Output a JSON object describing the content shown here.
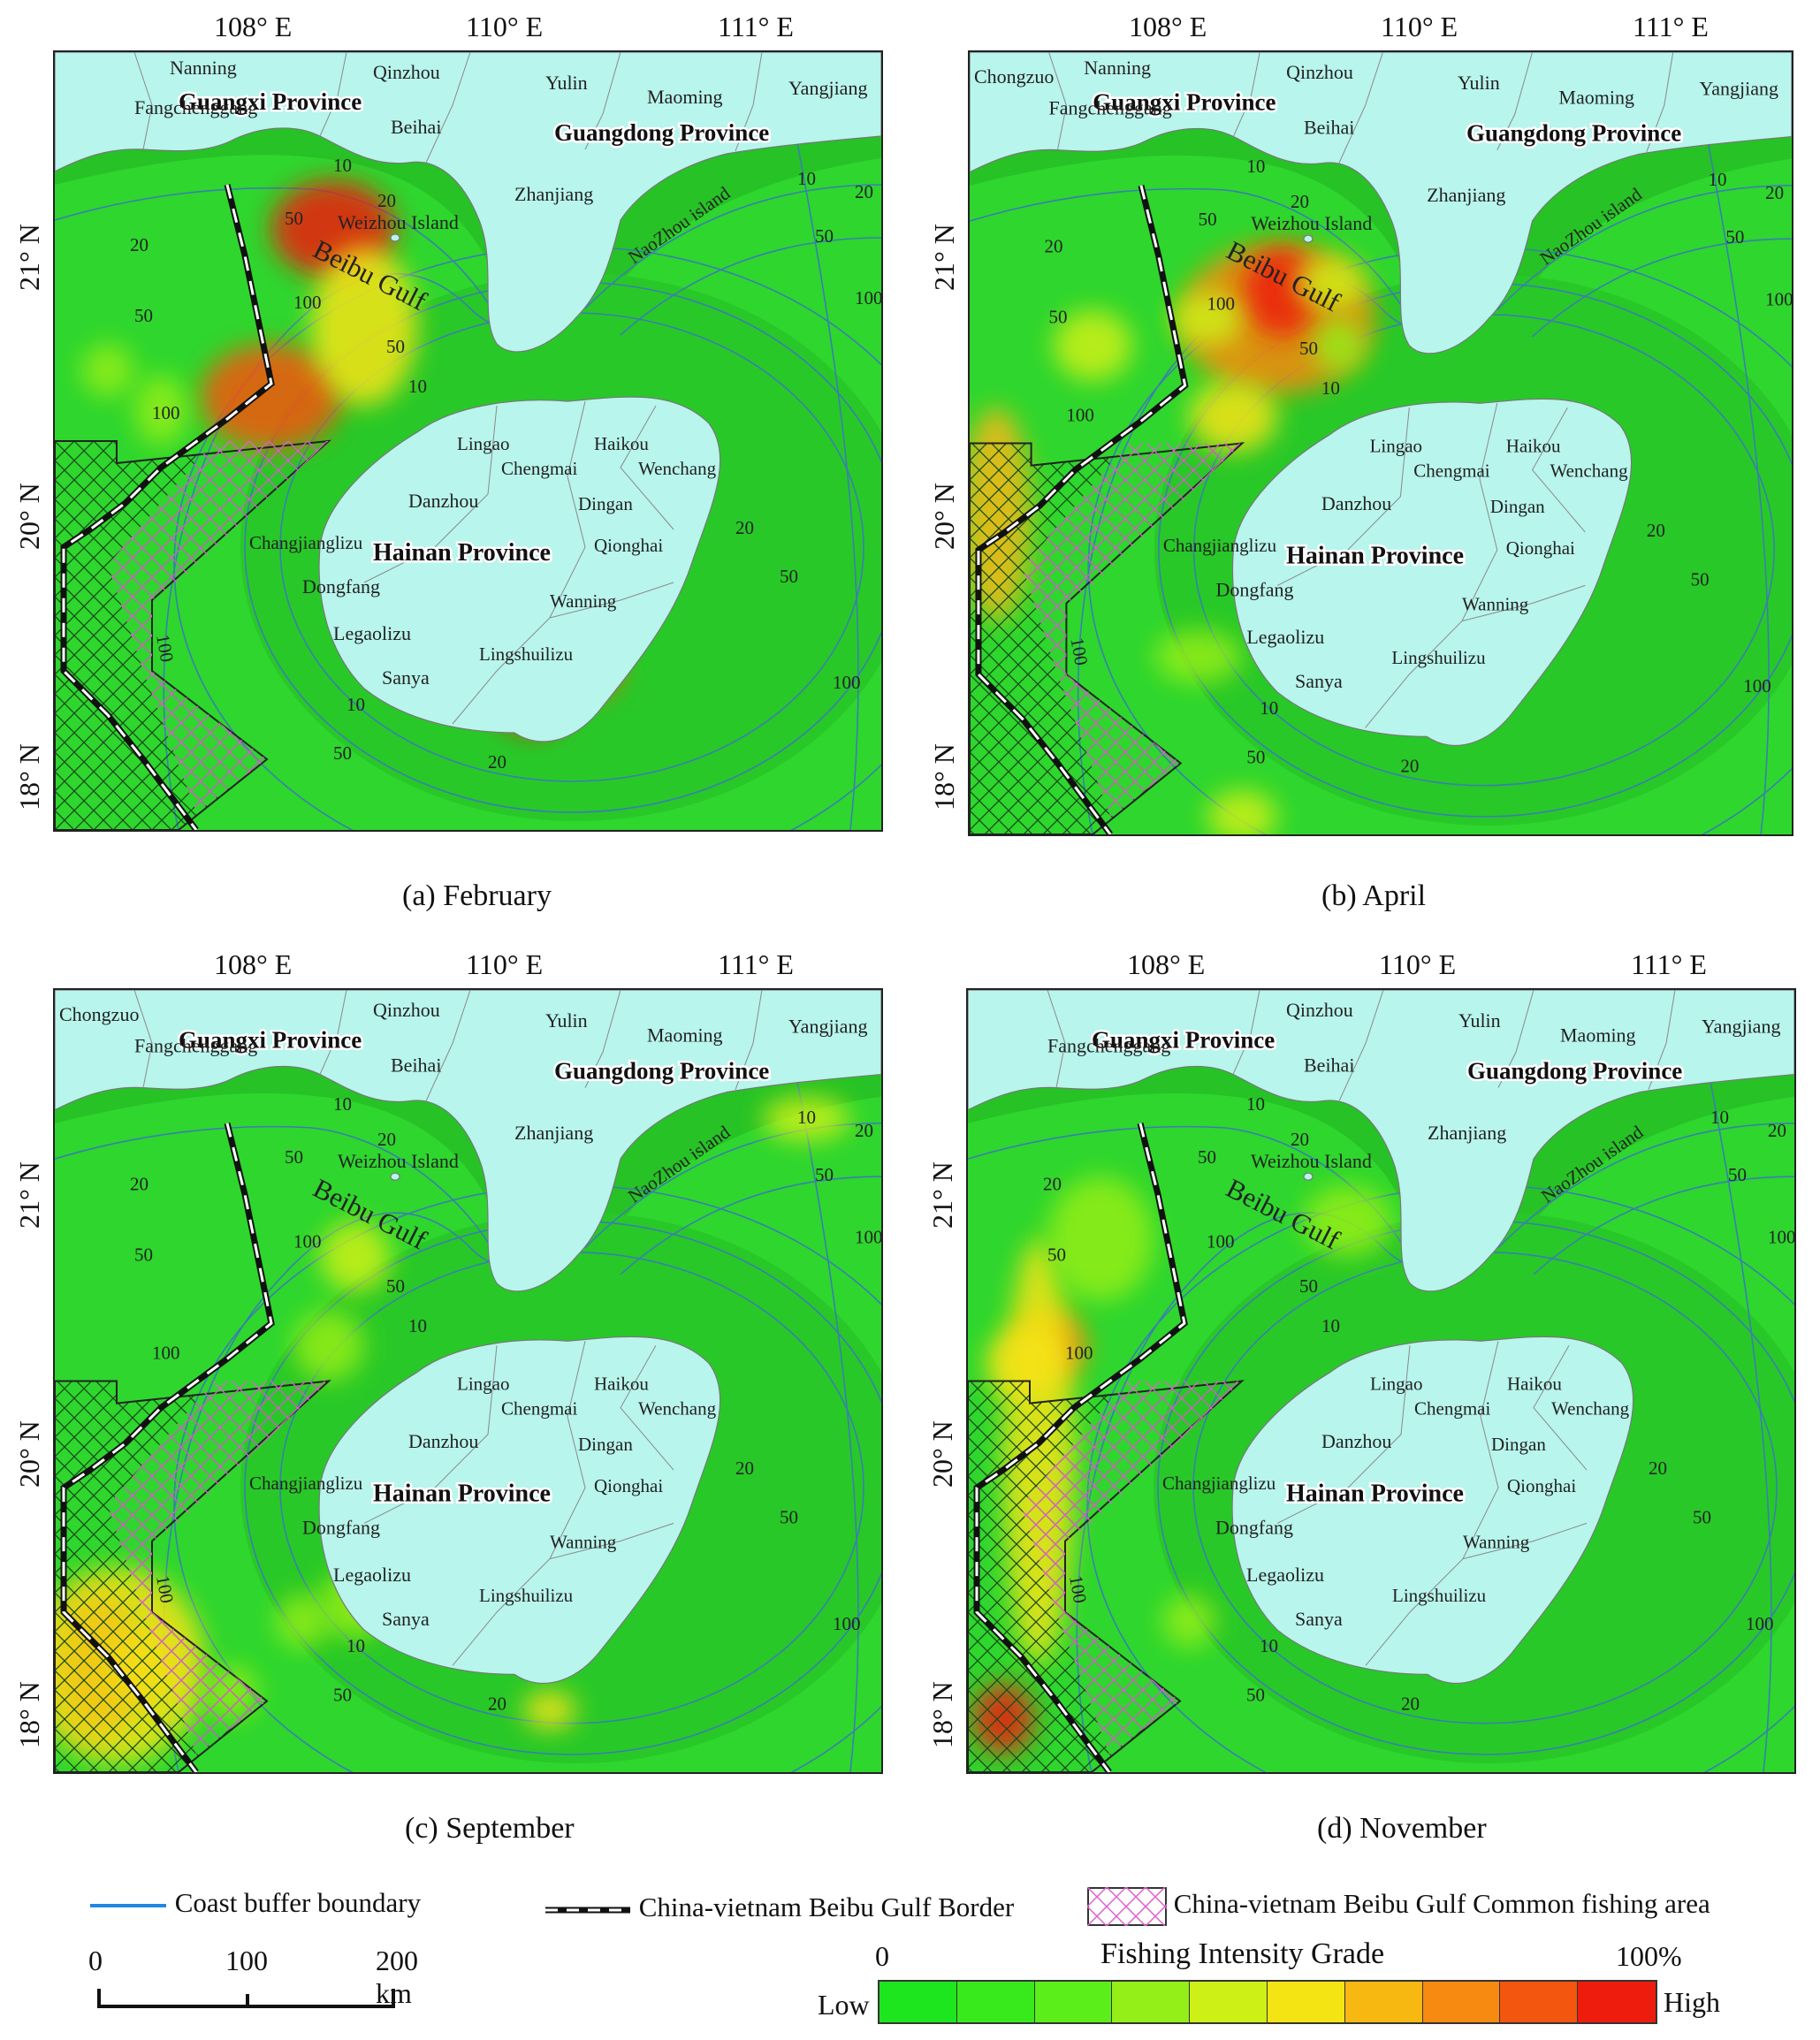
{
  "lon_labels": [
    "108° E",
    "110° E",
    "111° E"
  ],
  "lat_labels": [
    "21° N",
    "20° N",
    "18° N"
  ],
  "panels": [
    {
      "caption": "(a) February",
      "labels": {
        "nanning": "Nanning",
        "qinzhou": "Qinzhou",
        "guangxi": "Guangxi Province",
        "yulin": "Yulin",
        "maoming": "Maoming",
        "yangjiang": "Yangjiang",
        "fangchenggang": "Fangchenggang",
        "beihai": "Beihai",
        "guangdong": "Guangdong Province",
        "weizhou": "Weizhou Island",
        "zhanjiang": "Zhanjiang",
        "naozhou": "NaoZhou island",
        "beibu": "Beibu Gulf",
        "lingao": "Lingao",
        "haikou": "Haikou",
        "chengmai": "Chengmai",
        "wenchang": "Wenchang",
        "danzhou": "Danzhou",
        "dingan": "Dingan",
        "changjiang": "Changjianglizu",
        "qionghai": "Qionghai",
        "hainan": "Hainan Province",
        "dongfang": "Dongfang",
        "wanning": "Wanning",
        "legao": "Legaolizu",
        "lingshui": "Lingshuilizu",
        "sanya": "Sanya",
        "chongzuo": ""
      },
      "depths": {
        "d10a": "10",
        "d20a": "20",
        "d50a": "50",
        "d20b": "20",
        "d50b": "50",
        "d100a": "100",
        "d100b": "100",
        "d10b": "10",
        "d50c": "50",
        "d20c": "20",
        "d50d": "50",
        "d100c": "100",
        "d10c": "10",
        "d20d": "20",
        "d50e": "50",
        "d10d": "10",
        "d20e": "20",
        "d50f": "50",
        "d100d": "100",
        "d100e": "100"
      }
    },
    {
      "caption": "(b) April",
      "labels": {
        "nanning": "Nanning",
        "qinzhou": "Qinzhou",
        "guangxi": "Guangxi Province",
        "yulin": "Yulin",
        "maoming": "Maoming",
        "yangjiang": "Yangjiang",
        "fangchenggang": "Fangchenggang",
        "beihai": "Beihai",
        "guangdong": "Guangdong Province",
        "weizhou": "Weizhou Island",
        "zhanjiang": "Zhanjiang",
        "naozhou": "NaoZhou island",
        "beibu": "Beibu Gulf",
        "lingao": "Lingao",
        "haikou": "Haikou",
        "chengmai": "Chengmai",
        "wenchang": "Wenchang",
        "danzhou": "Danzhou",
        "dingan": "Dingan",
        "changjiang": "Changjianglizu",
        "qionghai": "Qionghai",
        "hainan": "Hainan Province",
        "dongfang": "Dongfang",
        "wanning": "Wanning",
        "legao": "Legaolizu",
        "lingshui": "Lingshuilizu",
        "sanya": "Sanya",
        "chongzuo": "Chongzuo"
      },
      "depths": {
        "d10a": "10",
        "d20a": "20",
        "d50a": "50",
        "d20b": "20",
        "d50b": "50",
        "d100a": "100",
        "d100b": "100",
        "d10b": "10",
        "d50c": "50",
        "d20c": "20",
        "d50d": "50",
        "d100c": "100",
        "d10c": "10",
        "d20d": "20",
        "d50e": "50",
        "d10d": "10",
        "d20e": "20",
        "d50f": "50",
        "d100d": "100",
        "d100e": "100"
      }
    },
    {
      "caption": "(c) September",
      "labels": {
        "nanning": "",
        "qinzhou": "Qinzhou",
        "guangxi": "Guangxi Province",
        "yulin": "Yulin",
        "maoming": "Maoming",
        "yangjiang": "Yangjiang",
        "fangchenggang": "Fangchenggang",
        "beihai": "Beihai",
        "guangdong": "Guangdong Province",
        "weizhou": "Weizhou Island",
        "zhanjiang": "Zhanjiang",
        "naozhou": "NaoZhou island",
        "beibu": "Beibu Gulf",
        "lingao": "Lingao",
        "haikou": "Haikou",
        "chengmai": "Chengmai",
        "wenchang": "Wenchang",
        "danzhou": "Danzhou",
        "dingan": "Dingan",
        "changjiang": "Changjianglizu",
        "qionghai": "Qionghai",
        "hainan": "Hainan Province",
        "dongfang": "Dongfang",
        "wanning": "Wanning",
        "legao": "Legaolizu",
        "lingshui": "Lingshuilizu",
        "sanya": "Sanya",
        "chongzuo": "Chongzuo"
      },
      "depths": {
        "d10a": "10",
        "d20a": "20",
        "d50a": "50",
        "d20b": "20",
        "d50b": "50",
        "d100a": "100",
        "d100b": "100",
        "d10b": "10",
        "d50c": "50",
        "d20c": "20",
        "d50d": "50",
        "d100c": "100",
        "d10c": "10",
        "d20d": "20",
        "d50e": "50",
        "d10d": "10",
        "d20e": "20",
        "d50f": "50",
        "d100d": "100",
        "d100e": "100"
      }
    },
    {
      "caption": "(d) November",
      "labels": {
        "nanning": "",
        "qinzhou": "Qinzhou",
        "guangxi": "Guangxi Province",
        "yulin": "Yulin",
        "maoming": "Maoming",
        "yangjiang": "Yangjiang",
        "fangchenggang": "Fangchenggang",
        "beihai": "Beihai",
        "guangdong": "Guangdong Province",
        "weizhou": "Weizhou Island",
        "zhanjiang": "Zhanjiang",
        "naozhou": "NaoZhou island",
        "beibu": "Beibu Gulf",
        "lingao": "Lingao",
        "haikou": "Haikou",
        "chengmai": "Chengmai",
        "wenchang": "Wenchang",
        "danzhou": "Danzhou",
        "dingan": "Dingan",
        "changjiang": "Changjianglizu",
        "qionghai": "Qionghai",
        "hainan": "Hainan Province",
        "dongfang": "Dongfang",
        "wanning": "Wanning",
        "legao": "Legaolizu",
        "lingshui": "Lingshuilizu",
        "sanya": "Sanya",
        "chongzuo": ""
      },
      "depths": {
        "d10a": "10",
        "d20a": "20",
        "d50a": "50",
        "d20b": "20",
        "d50b": "50",
        "d100a": "100",
        "d100b": "100",
        "d10b": "10",
        "d50c": "50",
        "d20c": "20",
        "d50d": "50",
        "d100c": "100",
        "d10c": "10",
        "d20d": "20",
        "d50e": "50",
        "d10d": "10",
        "d20e": "20",
        "d50f": "50",
        "d100d": "100",
        "d100e": "100"
      }
    }
  ],
  "legend": {
    "coast_buffer": "Coast buffer boundary",
    "border": "China-vietnam Beibu Gulf Border",
    "common_area": "China-vietnam Beibu Gulf Common fishing area"
  },
  "scale_bar": {
    "tick0": "0",
    "tick1": "100",
    "tick2": "200 km"
  },
  "intensity": {
    "title": "Fishing Intensity Grade",
    "min_label": "0",
    "max_label": "100%",
    "low": "Low",
    "high": "High",
    "colors": [
      "#1ee61e",
      "#38ea1c",
      "#5cee1a",
      "#94ee18",
      "#cdf016",
      "#f5e414",
      "#f8b812",
      "#f78a10",
      "#f3560e",
      "#ee1c0c"
    ]
  },
  "colors": {
    "land": "#b8f5ec",
    "sea": "#2fd62f",
    "contour": "#3a7fb0",
    "border_line": "#111111"
  }
}
